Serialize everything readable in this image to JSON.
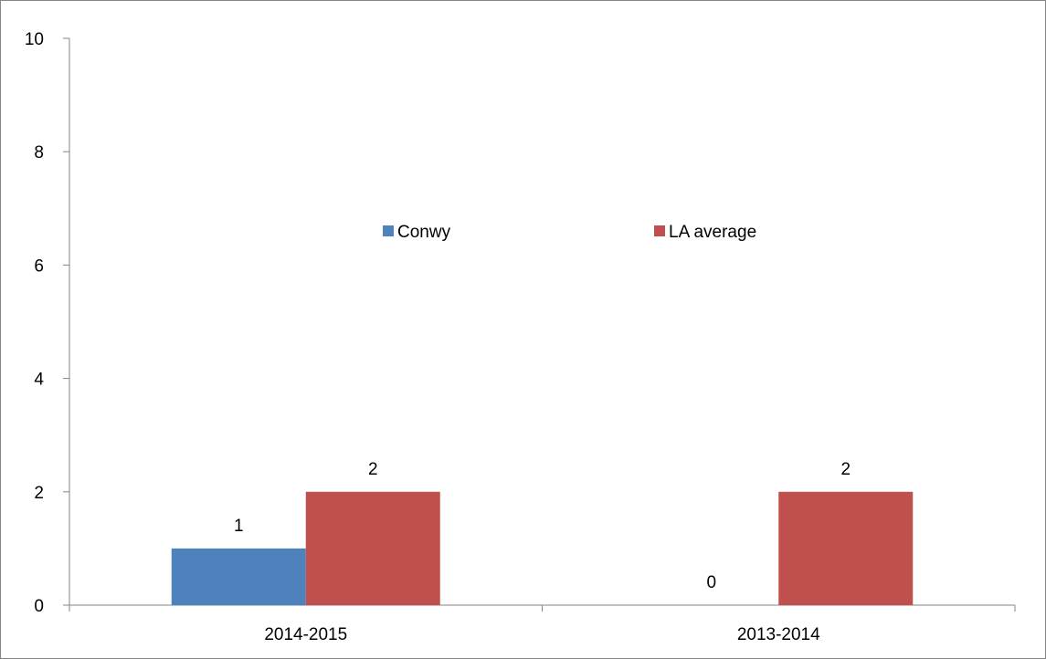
{
  "chart_data": {
    "type": "bar",
    "title": "",
    "xlabel": "",
    "ylabel": "",
    "categories": [
      "2014-2015",
      "2013-2014"
    ],
    "series": [
      {
        "name": "Conwy",
        "values": [
          1,
          0
        ],
        "color": "#4F81BD"
      },
      {
        "name": "LA average",
        "values": [
          2,
          2
        ],
        "color": "#C0504D"
      }
    ],
    "data_labels": [
      [
        "1",
        "0"
      ],
      [
        "2",
        "2"
      ]
    ],
    "ylim": [
      0,
      10
    ],
    "yticks": [
      0,
      2,
      4,
      6,
      8,
      10
    ],
    "grid": false,
    "legend_position": "inside-top-center"
  }
}
